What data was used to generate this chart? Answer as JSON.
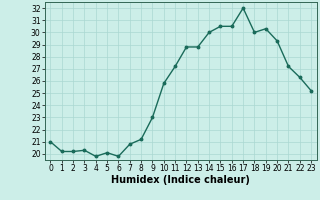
{
  "x": [
    0,
    1,
    2,
    3,
    4,
    5,
    6,
    7,
    8,
    9,
    10,
    11,
    12,
    13,
    14,
    15,
    16,
    17,
    18,
    19,
    20,
    21,
    22,
    23
  ],
  "y": [
    21.0,
    20.2,
    20.2,
    20.3,
    19.8,
    20.1,
    19.8,
    20.8,
    21.2,
    23.0,
    25.8,
    27.2,
    28.8,
    28.8,
    30.0,
    30.5,
    30.5,
    32.0,
    30.0,
    30.3,
    29.3,
    27.2,
    26.3,
    25.2
  ],
  "line_color": "#1a6b5a",
  "marker": "o",
  "marker_size": 1.8,
  "bg_color": "#cceee8",
  "grid_color": "#aad8d2",
  "xlabel": "Humidex (Indice chaleur)",
  "ylabel": "",
  "xlim": [
    -0.5,
    23.5
  ],
  "ylim": [
    19.5,
    32.5
  ],
  "yticks": [
    20,
    21,
    22,
    23,
    24,
    25,
    26,
    27,
    28,
    29,
    30,
    31,
    32
  ],
  "xticks": [
    0,
    1,
    2,
    3,
    4,
    5,
    6,
    7,
    8,
    9,
    10,
    11,
    12,
    13,
    14,
    15,
    16,
    17,
    18,
    19,
    20,
    21,
    22,
    23
  ],
  "tick_fontsize": 5.5,
  "label_fontsize": 7.0,
  "line_width": 1.0
}
